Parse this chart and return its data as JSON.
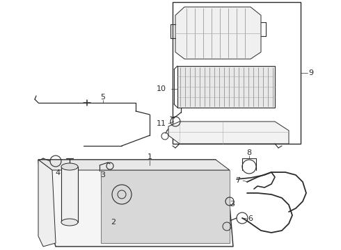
{
  "bg_color": "#ffffff",
  "lc": "#2a2a2a",
  "gray1": "#aaaaaa",
  "gray2": "#cccccc",
  "gray3": "#e0e0e0",
  "fig_width": 4.9,
  "fig_height": 3.6,
  "dpi": 100
}
